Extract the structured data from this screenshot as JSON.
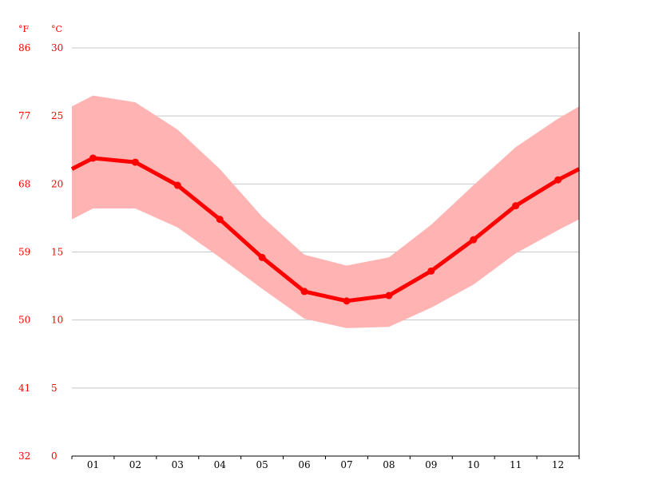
{
  "chart_data": {
    "type": "line",
    "categories": [
      "01",
      "02",
      "03",
      "04",
      "05",
      "06",
      "07",
      "08",
      "09",
      "10",
      "11",
      "12"
    ],
    "series": [
      {
        "values": [
          21.9,
          21.6,
          19.9,
          17.4,
          14.6,
          12.1,
          11.4,
          11.8,
          13.6,
          15.9,
          18.4,
          20.3
        ],
        "color": "#ff0000"
      }
    ],
    "band": {
      "upper": [
        26.5,
        26.0,
        24.0,
        21.1,
        17.6,
        14.8,
        14.0,
        14.6,
        17.0,
        19.9,
        22.7,
        24.8
      ],
      "lower": [
        18.2,
        18.2,
        16.8,
        14.6,
        12.3,
        10.1,
        9.4,
        9.5,
        10.9,
        12.6,
        14.9,
        16.6
      ],
      "edge_start": [
        25.7,
        17.4
      ],
      "edge_end": [
        25.7,
        17.4
      ],
      "color": "#ffb3b3"
    },
    "line_edge_values": [
      21.1,
      21.1
    ],
    "y_units": {
      "fahrenheit": "°F",
      "celsius": "°C"
    },
    "y_ticks_c": [
      "30",
      "25",
      "20",
      "15",
      "10",
      "5",
      "0"
    ],
    "y_ticks_f": [
      "86",
      "77",
      "68",
      "59",
      "50",
      "41",
      "32"
    ],
    "ylim": [
      0,
      30
    ],
    "grid": true,
    "axis_color": "#ff0000"
  }
}
